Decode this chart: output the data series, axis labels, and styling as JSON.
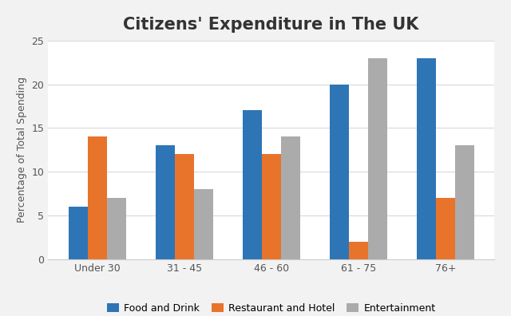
{
  "title": "Citizens' Expenditure in The UK",
  "ylabel": "Percentage of Total Spending",
  "categories": [
    "Under 30",
    "31 - 45",
    "46 - 60",
    "61 - 75",
    "76+"
  ],
  "series": [
    {
      "label": "Food and Drink",
      "color": "#2E75B6",
      "values": [
        6,
        13,
        17,
        20,
        23
      ]
    },
    {
      "label": "Restaurant and Hotel",
      "color": "#E8732A",
      "values": [
        14,
        12,
        12,
        2,
        7
      ]
    },
    {
      "label": "Entertainment",
      "color": "#ABABAB",
      "values": [
        7,
        8,
        14,
        23,
        13
      ]
    }
  ],
  "ylim": [
    0,
    25
  ],
  "yticks": [
    0,
    5,
    10,
    15,
    20,
    25
  ],
  "bar_width": 0.22,
  "background_color": "#F2F2F2",
  "plot_bg_color": "#FFFFFF",
  "grid_color": "#D9D9D9",
  "title_fontsize": 15,
  "axis_fontsize": 9,
  "tick_fontsize": 9
}
